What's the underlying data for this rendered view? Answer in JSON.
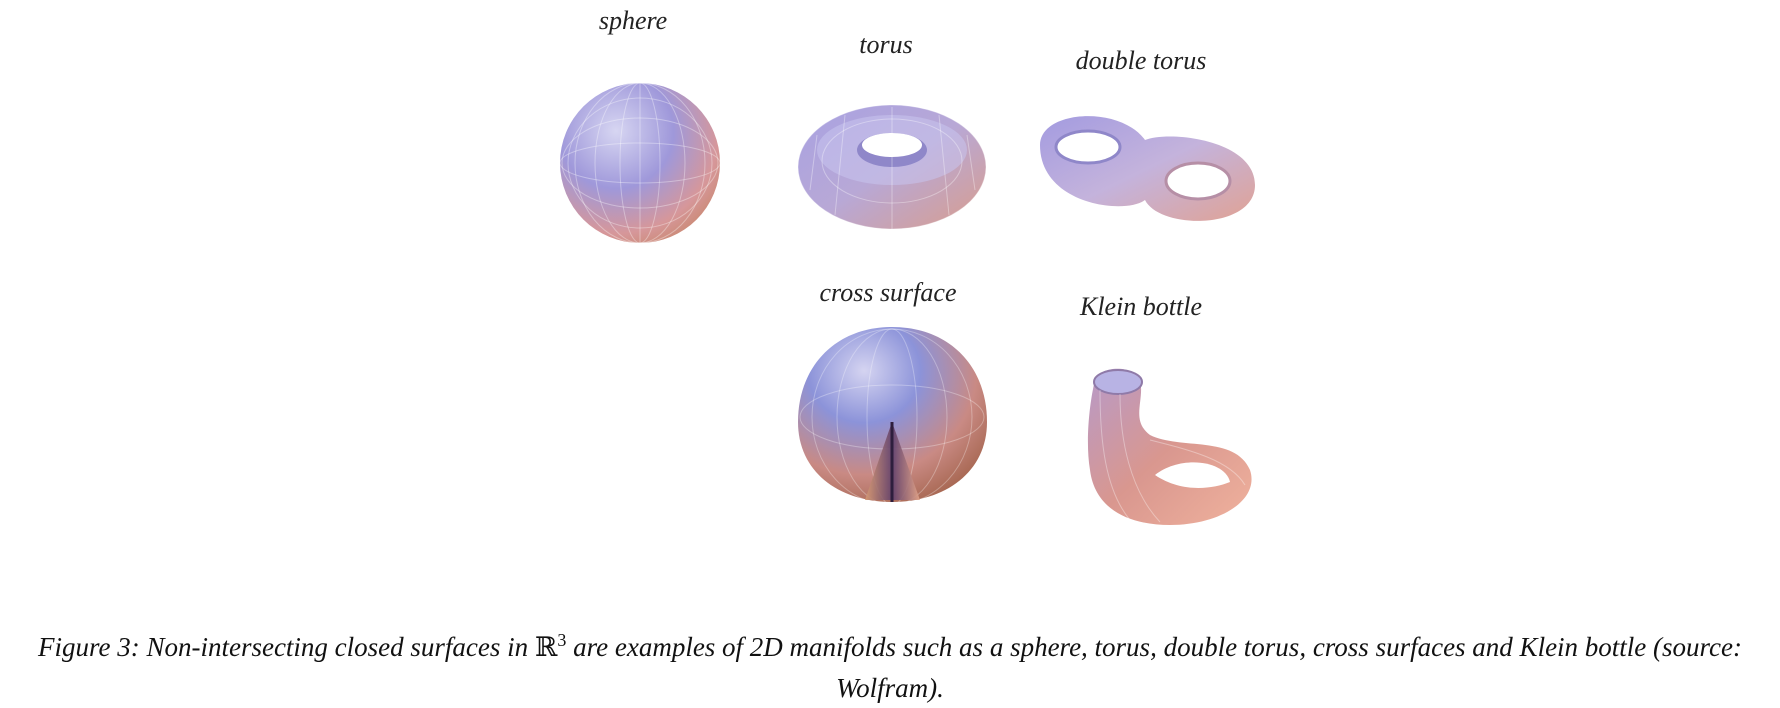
{
  "figure": {
    "labels": {
      "sphere": "sphere",
      "torus": "torus",
      "double_torus": "double torus",
      "cross_surface": "cross surface",
      "klein_bottle": "Klein bottle"
    },
    "caption": {
      "prefix": "Figure 3: Non-intersecting closed surfaces in ",
      "space_symbol": "ℝ",
      "space_exponent": "3",
      "suffix": " are examples of 2D manifolds such as a sphere, torus, double torus, cross surfaces and Klein bottle (source: Wolfram)."
    }
  }
}
